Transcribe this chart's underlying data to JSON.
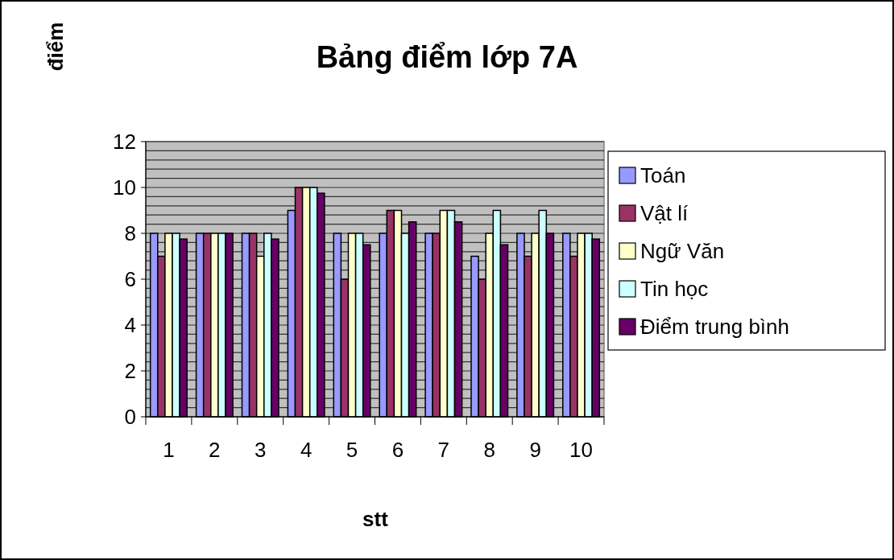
{
  "chart_data": {
    "type": "bar",
    "title": "Bảng điểm lớp 7A",
    "xlabel": "stt",
    "ylabel": "điểm",
    "categories": [
      "1",
      "2",
      "3",
      "4",
      "5",
      "6",
      "7",
      "8",
      "9",
      "10"
    ],
    "series": [
      {
        "name": "Toán",
        "color": "#9999ff",
        "values": [
          8,
          8,
          8,
          9,
          8,
          8,
          8,
          7,
          8,
          8
        ]
      },
      {
        "name": "Vật lí",
        "color": "#993366",
        "values": [
          7,
          8,
          8,
          10,
          6,
          9,
          8,
          6,
          7,
          7
        ]
      },
      {
        "name": "Ngữ Văn",
        "color": "#ffffcc",
        "values": [
          8,
          8,
          7,
          10,
          8,
          9,
          9,
          8,
          8,
          8
        ]
      },
      {
        "name": "Tin học",
        "color": "#ccffff",
        "values": [
          8,
          8,
          8,
          10,
          8,
          8,
          9,
          9,
          9,
          8
        ]
      },
      {
        "name": "Điểm trung bình",
        "color": "#660066",
        "values": [
          7.75,
          8,
          7.75,
          9.75,
          7.5,
          8.5,
          8.5,
          7.5,
          8,
          7.75
        ]
      }
    ],
    "ylim": [
      0,
      12
    ],
    "yticks": [
      0,
      {
        "value": 0.4,
        "label": null
      },
      {
        "value": 0.8,
        "label": null
      },
      {
        "value": 1.2,
        "label": null
      },
      {
        "value": 1.6,
        "label": null
      },
      2,
      {
        "value": 2.4,
        "label": null
      },
      {
        "value": 2.8,
        "label": null
      },
      {
        "value": 3.2,
        "label": null
      },
      {
        "value": 3.6,
        "label": null
      },
      4,
      {
        "value": 4.4,
        "label": null
      },
      {
        "value": 4.8,
        "label": null
      },
      {
        "value": 5.2,
        "label": null
      },
      {
        "value": 5.6,
        "label": null
      },
      6,
      {
        "value": 6.4,
        "label": null
      },
      {
        "value": 6.8,
        "label": null
      },
      {
        "value": 7.2,
        "label": null
      },
      {
        "value": 7.6,
        "label": null
      },
      8,
      {
        "value": 8.4,
        "label": null
      },
      {
        "value": 8.8,
        "label": null
      },
      {
        "value": 9.2,
        "label": null
      },
      {
        "value": 9.6,
        "label": null
      },
      10,
      {
        "value": 10.4,
        "label": null
      },
      {
        "value": 10.8,
        "label": null
      },
      {
        "value": 11.2,
        "label": null
      },
      {
        "value": 11.6,
        "label": null
      },
      12
    ],
    "grid": "y",
    "legend": "right"
  }
}
